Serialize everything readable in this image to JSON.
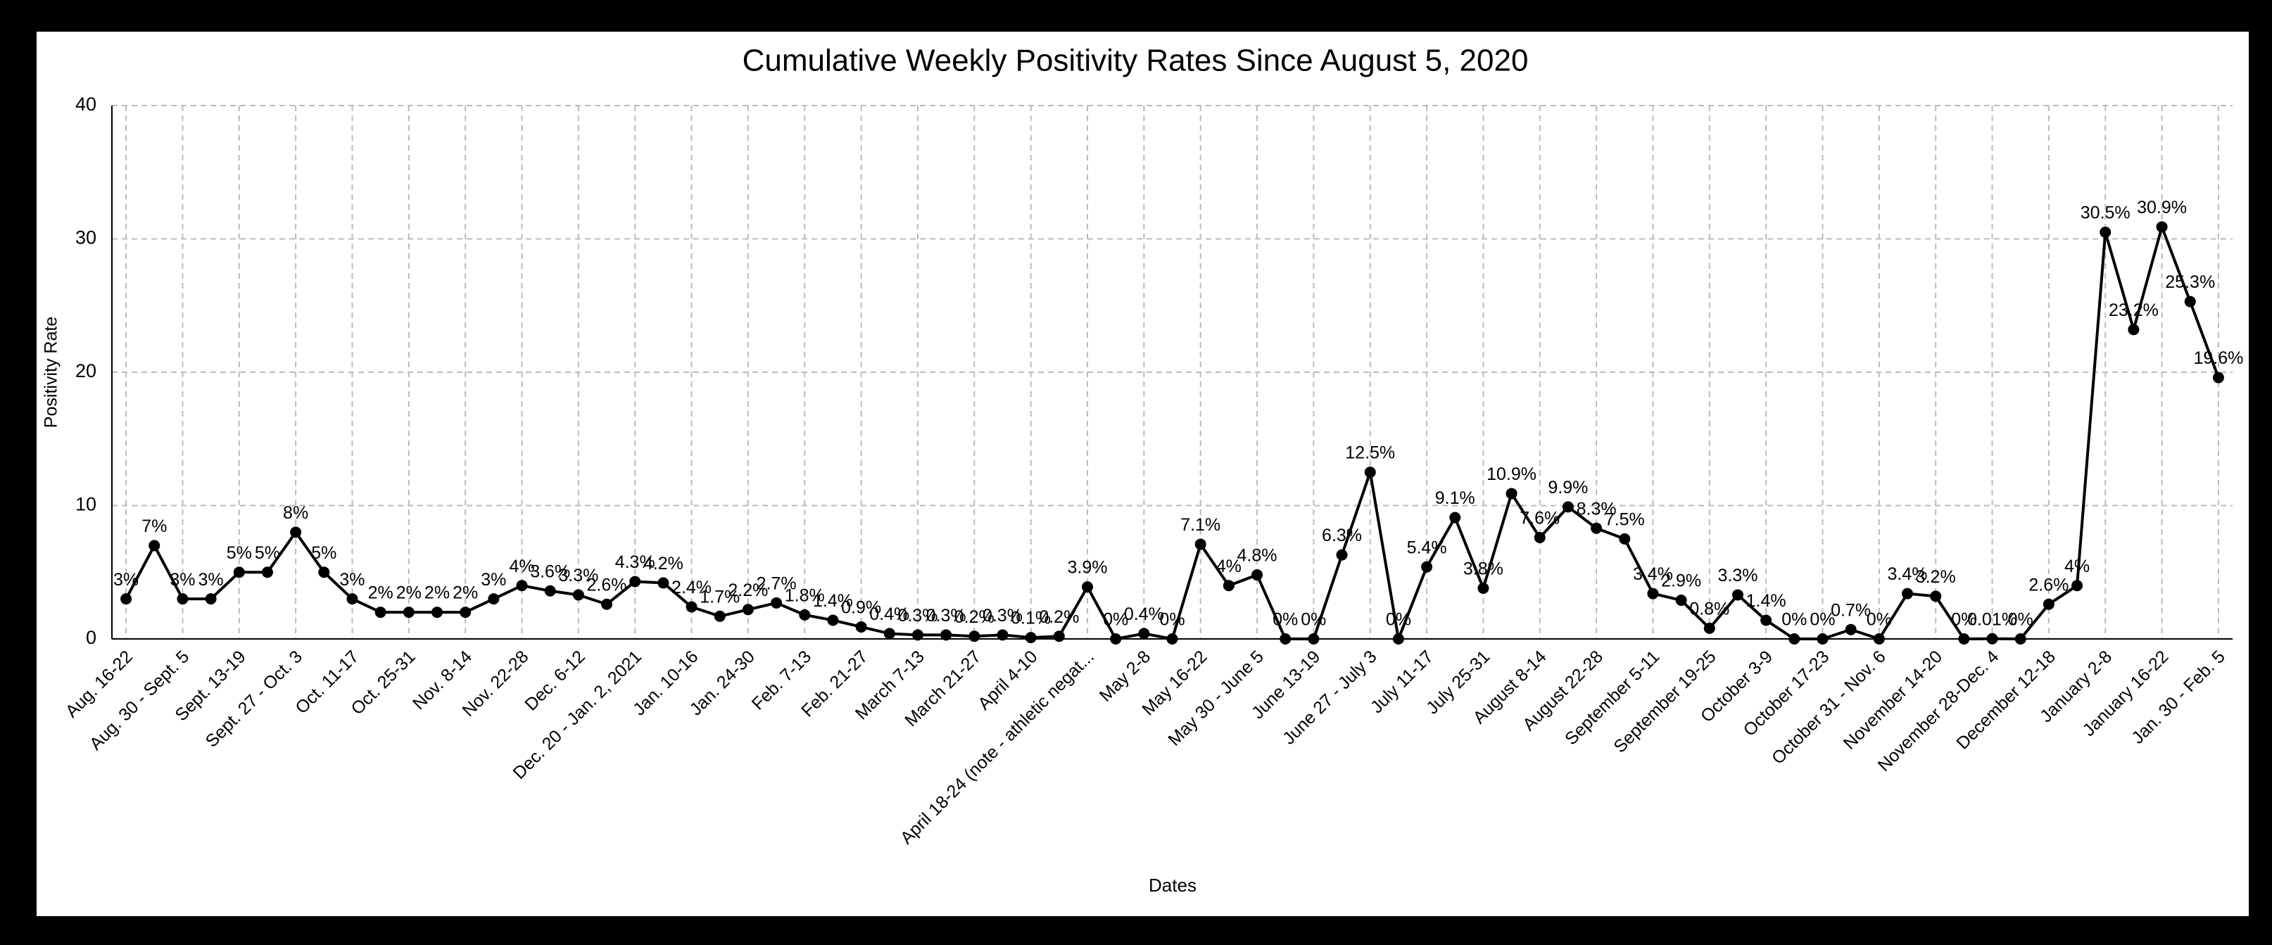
{
  "chart_data": {
    "type": "line",
    "title": "Cumulative Weekly Positivity Rates Since August 5, 2020",
    "x_label": "Dates",
    "y_label": "Positivity Rate",
    "categories": [
      "Aug. 16-22",
      null,
      "Aug. 30 - Sept. 5",
      null,
      "Sept. 13-19",
      null,
      "Sept. 27 - Oct. 3",
      null,
      "Oct. 11-17",
      null,
      "Oct. 25-31",
      null,
      "Nov. 8-14",
      null,
      "Nov. 22-28",
      null,
      "Dec. 6-12",
      null,
      "Dec. 20 - Jan. 2, 2021",
      null,
      "Jan. 10-16",
      null,
      "Jan. 24-30",
      null,
      "Feb. 7-13",
      null,
      "Feb. 21-27",
      null,
      "March 7-13",
      null,
      "March 21-27",
      null,
      "April 4-10",
      null,
      "April 18-24 (note - athletic negat...",
      null,
      "May 2-8",
      null,
      "May 16-22",
      null,
      "May 30 - June 5",
      null,
      "June 13-19",
      null,
      "June 27 - July 3",
      null,
      "July 11-17",
      null,
      "July 25-31",
      null,
      "August 8-14",
      null,
      "August 22-28",
      null,
      "September 5-11",
      null,
      "September 19-25",
      null,
      "October 3-9",
      null,
      "October 17-23",
      null,
      "October 31 - Nov. 6",
      null,
      "November 14-20",
      null,
      "November 28-Dec. 4",
      null,
      "December 12-18",
      null,
      "January 2-8",
      null,
      "January 16-22",
      null,
      "Jan. 30 - Feb. 5"
    ],
    "values": [
      3,
      7,
      3,
      3,
      5,
      5,
      8,
      5,
      3,
      2,
      2,
      2,
      2,
      3,
      4,
      3.6,
      3.3,
      2.6,
      4.3,
      4.2,
      2.4,
      1.7,
      2.2,
      2.7,
      1.8,
      1.4,
      0.9,
      0.4,
      0.3,
      0.3,
      0.2,
      0.3,
      0.1,
      0.2,
      3.9,
      0,
      0.4,
      0,
      7.1,
      4,
      4.8,
      0,
      0,
      6.3,
      12.5,
      0,
      5.4,
      9.1,
      3.8,
      10.9,
      7.6,
      9.9,
      8.3,
      7.5,
      3.4,
      2.9,
      0.8,
      3.3,
      1.4,
      0,
      0,
      0.7,
      0,
      3.4,
      3.2,
      0,
      0.01,
      0,
      2.6,
      4,
      30.5,
      23.2,
      30.9,
      25.3,
      19.6
    ],
    "value_labels": [
      "3%",
      "7%",
      "3%",
      "3%",
      "5%",
      "5%",
      "8%",
      "5%",
      "3%",
      "2%",
      "2%",
      "2%",
      "2%",
      "3%",
      "4%",
      "3.6%",
      "3.3%",
      "2.6%",
      "4.3%",
      "4.2%",
      "2.4%",
      "1.7%",
      "2.2%",
      "2.7%",
      "1.8%",
      "1.4%",
      "0.9%",
      "0.4%",
      "0.3%",
      "0.3%",
      "0.2%",
      "0.3%",
      "0.1%",
      "0.2%",
      "3.9%",
      "0%",
      "0.4%",
      "0%",
      "7.1%",
      "4%",
      "4.8%",
      "0%",
      "0%",
      "6.3%",
      "12.5%",
      "0%",
      "5.4%",
      "9.1%",
      "3.8%",
      "10.9%",
      "7.6%",
      "9.9%",
      "8.3%",
      "7.5%",
      "3.4%",
      "2.9%",
      "0.8%",
      "3.3%",
      "1.4%",
      "0%",
      "0%",
      "0.7%",
      "0%",
      "3.4%",
      "3.2%",
      "0%",
      "0.01%",
      "0%",
      "2.6%",
      "4%",
      "30.5%",
      "23.2%",
      "30.9%",
      "25.3%",
      "19.6%"
    ],
    "color": "#000000",
    "ylim": [
      0,
      40
    ],
    "yticks": [
      0,
      10,
      20,
      30,
      40
    ],
    "grid": true
  }
}
